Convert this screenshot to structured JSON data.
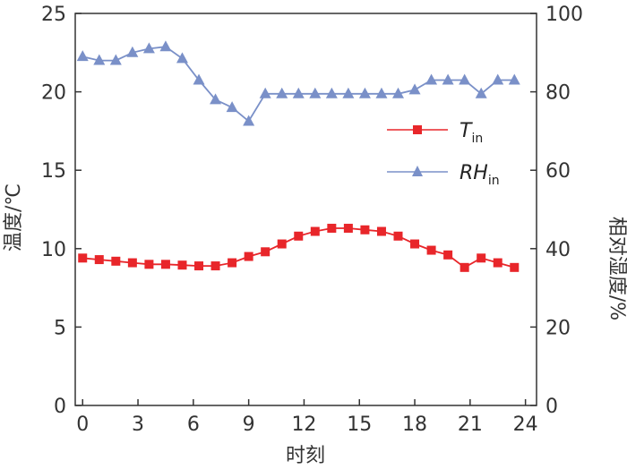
{
  "chart_data": {
    "type": "line",
    "title": "",
    "xlabel": "时刻",
    "ylabel_left": "温度/℃",
    "ylabel_right": "相对湿度/%",
    "xlim": [
      -0.4,
      24.6
    ],
    "ylim_left": [
      0,
      25
    ],
    "ylim_right": [
      0,
      100
    ],
    "x_ticks": [
      "0",
      "3",
      "6",
      "9",
      "12",
      "15",
      "18",
      "21",
      "24"
    ],
    "y_ticks_left": [
      "0",
      "5",
      "10",
      "15",
      "20",
      "25"
    ],
    "y_ticks_right": [
      "0",
      "20",
      "40",
      "60",
      "80",
      "100"
    ],
    "grid": false,
    "legend_position": "center-right",
    "series": [
      {
        "name": "T",
        "name_sub": "in",
        "axis": "left",
        "color": "#e8262a",
        "marker": "square",
        "x": [
          0,
          0.9,
          1.8,
          2.7,
          3.6,
          4.5,
          5.4,
          6.3,
          7.2,
          8.1,
          9,
          9.9,
          10.8,
          11.7,
          12.6,
          13.5,
          14.4,
          15.3,
          16.2,
          17.1,
          18,
          18.9,
          19.8,
          20.7,
          21.6,
          22.5,
          23.4
        ],
        "values": [
          9.4,
          9.3,
          9.2,
          9.1,
          9.0,
          9.0,
          8.95,
          8.9,
          8.9,
          9.1,
          9.5,
          9.8,
          10.3,
          10.8,
          11.1,
          11.3,
          11.3,
          11.2,
          11.1,
          10.8,
          10.3,
          9.9,
          9.6,
          8.8,
          9.4,
          9.1,
          8.8
        ]
      },
      {
        "name": "RH",
        "name_sub": "in",
        "axis": "right",
        "color": "#7a90c8",
        "marker": "triangle",
        "x": [
          0,
          0.9,
          1.8,
          2.7,
          3.6,
          4.5,
          5.4,
          6.3,
          7.2,
          8.1,
          9,
          9.9,
          10.8,
          11.7,
          12.6,
          13.5,
          14.4,
          15.3,
          16.2,
          17.1,
          18,
          18.9,
          19.8,
          20.7,
          21.6,
          22.5,
          23.4
        ],
        "values": [
          89,
          88,
          88,
          90,
          91,
          91.5,
          88.5,
          83,
          78,
          76,
          72.5,
          79.5,
          79.5,
          79.5,
          79.5,
          79.5,
          79.5,
          79.5,
          79.5,
          79.5,
          80.5,
          83,
          83,
          83,
          79.5,
          83,
          83
        ]
      }
    ]
  }
}
